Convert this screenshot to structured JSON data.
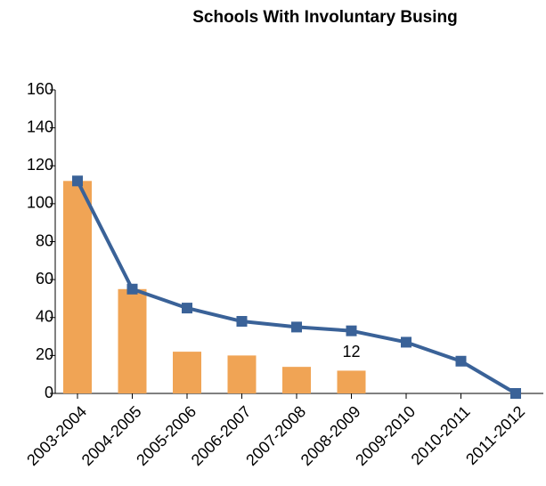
{
  "chart_data": {
    "type": "bar",
    "title": "Schools With Involuntary Busing",
    "categories": [
      "2003-2004",
      "2004-2005",
      "2005-2006",
      "2006-2007",
      "2007-2008",
      "2008-2009",
      "2009-2010",
      "2010-2011",
      "2011-2012"
    ],
    "series": [
      {
        "type": "bar",
        "color": "#f0a455",
        "values": [
          112,
          55,
          22,
          20,
          14,
          12,
          null,
          null,
          null
        ],
        "value_labels": [
          null,
          null,
          null,
          null,
          null,
          "12",
          null,
          null,
          null
        ]
      },
      {
        "type": "line",
        "color": "#3a6298",
        "values": [
          112,
          55,
          45,
          38,
          35,
          33,
          27,
          17,
          0
        ]
      }
    ],
    "ylim": [
      0,
      160
    ],
    "yticks": [
      0,
      20,
      40,
      60,
      80,
      100,
      120,
      140,
      160
    ],
    "grid": false
  }
}
